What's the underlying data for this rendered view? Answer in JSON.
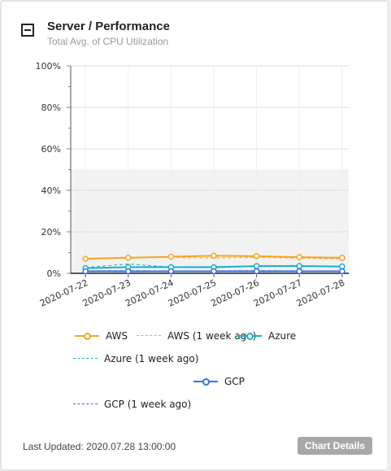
{
  "header": {
    "title": "Server / Performance",
    "subtitle": "Total Avg. of CPU Utilization"
  },
  "chart_data": {
    "type": "line",
    "categories": [
      "2020-07-22",
      "2020-07-23",
      "2020-07-24",
      "2020-07-25",
      "2020-07-26",
      "2020-07-27",
      "2020-07-28"
    ],
    "ylim": [
      0,
      100
    ],
    "yticks": [
      "0%",
      "20%",
      "40%",
      "60%",
      "80%",
      "100%"
    ],
    "ytick_values": [
      0,
      20,
      40,
      60,
      80,
      100
    ],
    "shaded_band": [
      0,
      50
    ],
    "grid": true,
    "series": [
      {
        "name": "AWS",
        "color": "#f5a623",
        "dashed": false,
        "markers": true,
        "values": [
          7,
          7.5,
          8,
          8.5,
          8.3,
          7.8,
          7.5
        ]
      },
      {
        "name": "AWS (1 week ago)",
        "color": "#f5a623",
        "dashed": true,
        "markers": false,
        "values": [
          7.2,
          7.8,
          7.6,
          7.4,
          7.7,
          7.3,
          7.0
        ]
      },
      {
        "name": "Azure",
        "color": "#1ab0c8",
        "dashed": false,
        "markers": true,
        "values": [
          2.5,
          3,
          3,
          3,
          3.5,
          3.5,
          3.3
        ]
      },
      {
        "name": "Azure (1 week ago)",
        "color": "#1ab0c8",
        "dashed": true,
        "markers": false,
        "values": [
          2.8,
          4.5,
          3,
          2.7,
          3.6,
          3.8,
          3.2
        ]
      },
      {
        "name": "GCP",
        "color": "#3a6ee8",
        "dashed": false,
        "markers": true,
        "values": [
          1,
          1,
          1,
          1,
          1,
          1,
          1
        ]
      },
      {
        "name": "GCP (1 week ago)",
        "color": "#3a6ee8",
        "dashed": true,
        "markers": false,
        "values": [
          1.2,
          1.3,
          1.1,
          1.2,
          1.3,
          1.2,
          1.1
        ]
      }
    ]
  },
  "footer": {
    "last_updated": "Last Updated: 2020.07.28 13:00:00",
    "details_button": "Chart Details"
  }
}
